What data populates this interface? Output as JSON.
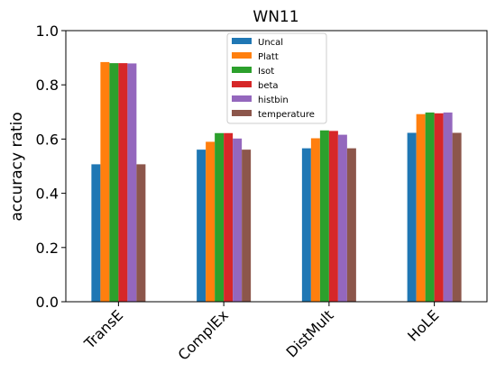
{
  "chart_data": {
    "type": "bar",
    "title": "WN11",
    "xlabel": "",
    "ylabel": "accuracy ratio",
    "ylim": [
      0,
      1.0
    ],
    "yticks": [
      0.0,
      0.2,
      0.4,
      0.6,
      0.8,
      1.0
    ],
    "ytick_labels": [
      "0.0",
      "0.2",
      "0.4",
      "0.6",
      "0.8",
      "1.0"
    ],
    "categories": [
      "TransE",
      "ComplEx",
      "DistMult",
      "HoLE"
    ],
    "legend_position": "top-center",
    "grid": false,
    "series": [
      {
        "name": "Uncal",
        "color": "#1f77b4",
        "values": [
          0.507,
          0.561,
          0.566,
          0.623
        ]
      },
      {
        "name": "Platt",
        "color": "#ff7f0e",
        "values": [
          0.884,
          0.59,
          0.603,
          0.692
        ]
      },
      {
        "name": "Isot",
        "color": "#2ca02c",
        "values": [
          0.88,
          0.622,
          0.632,
          0.698
        ]
      },
      {
        "name": "beta",
        "color": "#d62728",
        "values": [
          0.88,
          0.622,
          0.63,
          0.695
        ]
      },
      {
        "name": "histbin",
        "color": "#9467bd",
        "values": [
          0.879,
          0.602,
          0.616,
          0.698
        ]
      },
      {
        "name": "temperature",
        "color": "#8c564b",
        "values": [
          0.507,
          0.561,
          0.566,
          0.623
        ]
      }
    ]
  }
}
